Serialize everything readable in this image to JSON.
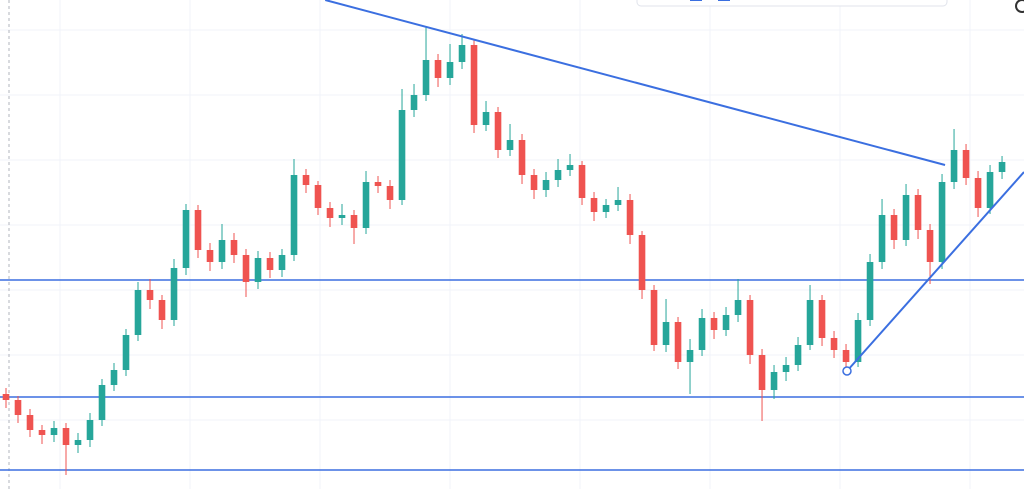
{
  "chart_data": {
    "type": "candlestick",
    "xlim": [
      -0.5,
      84.83
    ],
    "ylim": [
      0,
      489
    ],
    "up_color": "#26a69a",
    "down_color": "#ef5350",
    "line_color": "#3b6fe0",
    "open": [
      95,
      89,
      74,
      59,
      54,
      61,
      44,
      49,
      69,
      104,
      119,
      154,
      199,
      189,
      169,
      221,
      279,
      239,
      227,
      249,
      234,
      207,
      231,
      219,
      234,
      314,
      304,
      281,
      271,
      274,
      261,
      307,
      303,
      289,
      379,
      394,
      429,
      411,
      427,
      444,
      364,
      377,
      339,
      349,
      314,
      299,
      309,
      319,
      324,
      291,
      277,
      284,
      289,
      254,
      199,
      144,
      167,
      127,
      139,
      171,
      159,
      174,
      189,
      134,
      99,
      117,
      124,
      144,
      189,
      151,
      139,
      127,
      169,
      227,
      274,
      249,
      294,
      259,
      227,
      307,
      339,
      311,
      281,
      317
    ],
    "high": [
      101,
      93,
      80,
      64,
      68,
      66,
      56,
      76,
      110,
      126,
      160,
      207,
      210,
      194,
      230,
      285,
      284,
      246,
      265,
      256,
      240,
      238,
      237,
      240,
      330,
      320,
      308,
      287,
      285,
      279,
      318,
      313,
      309,
      400,
      405,
      462,
      435,
      445,
      455,
      450,
      388,
      382,
      365,
      355,
      320,
      317,
      330,
      335,
      328,
      297,
      290,
      302,
      295,
      258,
      204,
      190,
      172,
      150,
      180,
      177,
      182,
      210,
      194,
      140,
      124,
      132,
      152,
      204,
      194,
      158,
      145,
      176,
      235,
      290,
      280,
      305,
      300,
      265,
      315,
      360,
      345,
      318,
      324,
      333
    ],
    "low": [
      81,
      66,
      52,
      45,
      47,
      14,
      36,
      42,
      63,
      98,
      113,
      148,
      180,
      160,
      163,
      214,
      231,
      218,
      220,
      226,
      192,
      200,
      211,
      212,
      228,
      296,
      274,
      262,
      264,
      245,
      255,
      296,
      280,
      284,
      372,
      388,
      402,
      404,
      420,
      356,
      358,
      331,
      333,
      305,
      290,
      292,
      302,
      313,
      284,
      268,
      271,
      278,
      245,
      190,
      138,
      137,
      120,
      95,
      133,
      150,
      153,
      167,
      125,
      68,
      90,
      108,
      118,
      139,
      143,
      131,
      120,
      122,
      163,
      220,
      240,
      243,
      250,
      205,
      220,
      300,
      304,
      272,
      275,
      310
    ],
    "close": [
      89,
      74,
      59,
      54,
      61,
      44,
      49,
      69,
      104,
      119,
      154,
      199,
      189,
      169,
      221,
      279,
      239,
      227,
      249,
      234,
      207,
      231,
      219,
      234,
      314,
      304,
      281,
      271,
      274,
      261,
      307,
      303,
      289,
      379,
      394,
      429,
      411,
      427,
      444,
      364,
      377,
      339,
      349,
      314,
      299,
      309,
      319,
      324,
      291,
      277,
      284,
      289,
      254,
      199,
      144,
      167,
      127,
      139,
      171,
      159,
      174,
      189,
      134,
      99,
      117,
      124,
      144,
      189,
      151,
      139,
      127,
      169,
      227,
      274,
      249,
      294,
      259,
      227,
      307,
      339,
      311,
      281,
      317,
      327
    ],
    "hlines": [
      209,
      92,
      19
    ],
    "trendlines": [
      [
        26.6,
        489,
        78.25,
        324
      ],
      [
        70.08,
        118,
        84.83,
        317
      ]
    ]
  }
}
